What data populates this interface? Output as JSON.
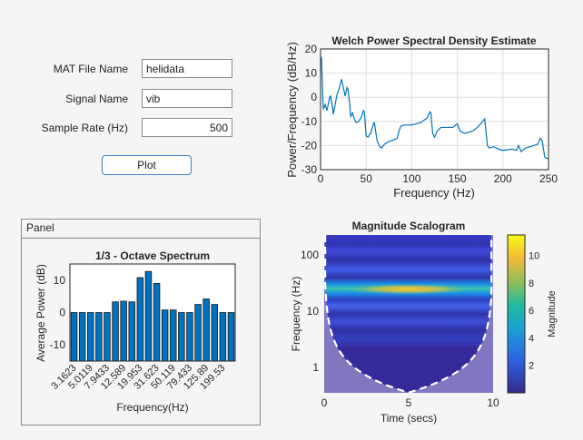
{
  "form": {
    "mat_file_label": "MAT File Name",
    "mat_file_value": "helidata",
    "signal_label": "Signal Name",
    "signal_value": "vib",
    "rate_label": "Sample Rate (Hz)",
    "rate_value": "500",
    "plot_button": "Plot"
  },
  "panel": {
    "title": "Panel"
  },
  "colors": {
    "bar": "#0072BD",
    "line": "#0072BD",
    "background": "#f5f5f5"
  },
  "chart_data": [
    {
      "type": "line",
      "title": "Welch Power Spectral Density Estimate",
      "xlabel": "Frequency (Hz)",
      "ylabel": "Power/Frequency (dB/Hz)",
      "xlim": [
        0,
        250
      ],
      "ylim": [
        -30,
        20
      ],
      "grid": true,
      "xticks": [
        "0",
        "50",
        "100",
        "150",
        "200",
        "250"
      ],
      "yticks": [
        "-30",
        "-20",
        "-10",
        "0",
        "10",
        "20"
      ],
      "x": [
        0,
        1,
        2,
        3,
        5,
        7,
        10,
        11,
        13,
        14,
        16,
        18,
        20,
        23,
        25,
        27,
        29,
        30,
        32,
        33,
        35,
        37,
        39,
        42,
        45,
        47,
        48,
        50,
        52,
        55,
        58,
        59,
        62,
        65,
        67,
        70,
        74,
        78,
        84,
        86,
        88,
        92,
        100,
        110,
        117,
        120,
        121,
        123,
        125,
        128,
        132,
        140,
        145,
        150,
        153,
        158,
        162,
        167,
        172,
        178,
        180,
        183,
        185,
        190,
        195,
        200,
        210,
        215,
        217,
        220,
        225,
        230,
        238,
        241,
        243,
        246,
        250
      ],
      "y": [
        17,
        16,
        5,
        -5,
        -3,
        -5.5,
        0,
        0.5,
        -4,
        -7,
        -3,
        1,
        3,
        7.5,
        4,
        0.5,
        4,
        3.5,
        -3,
        -8,
        -6.5,
        -9,
        -10.5,
        -10,
        -8,
        -5.5,
        -6,
        -16,
        -16.5,
        -15,
        -11,
        -10.5,
        -18,
        -20.5,
        -21,
        -19.5,
        -18.5,
        -18,
        -17,
        -14,
        -12,
        -11.5,
        -11.5,
        -10.5,
        -8.5,
        -6,
        -6.5,
        -15,
        -16.5,
        -14,
        -12.5,
        -12.5,
        -12.5,
        -11,
        -14,
        -15,
        -14.5,
        -14,
        -12.5,
        -10,
        -9,
        -20,
        -21,
        -20.5,
        -21.5,
        -22,
        -21.5,
        -22,
        -20,
        -22.5,
        -21,
        -20.5,
        -19.5,
        -17,
        -18,
        -25,
        -25.5
      ]
    },
    {
      "type": "bar",
      "title": "1/3 - Octave Spectrum",
      "xlabel": "Frequency(Hz)",
      "ylabel": "Average Power (dB)",
      "ylim": [
        -15,
        15
      ],
      "yticks": [
        "-10",
        "0",
        "10"
      ],
      "xtick_labels": [
        "3.1623",
        "5.0119",
        "7.9433",
        "12.589",
        "19.953",
        "31.623",
        "50.119",
        "79.433",
        "125.89",
        "199.53"
      ],
      "values": [
        -12.5,
        -8.5,
        -1,
        -0.7,
        -4.7,
        3.3,
        3.5,
        3.3,
        10.8,
        12.7,
        9,
        0.8,
        0.8,
        -3.5,
        -2.7,
        2.5,
        4.2,
        2.5,
        -1,
        -6
      ]
    },
    {
      "type": "heatmap",
      "title": "Magnitude Scalogram",
      "xlabel": "Time (secs)",
      "ylabel": "Frequency (Hz)",
      "xlim": [
        0,
        10
      ],
      "ylim": [
        0.35,
        226
      ],
      "yscale": "log",
      "xticks": [
        "0",
        "5",
        "10"
      ],
      "yticks": [
        "1",
        "10",
        "100"
      ],
      "colorbar": {
        "label": "Magnitude",
        "ticks": [
          "2",
          "4",
          "6",
          "8",
          "10"
        ],
        "range": [
          0,
          11.5
        ]
      },
      "peak_band_hz": [
        20,
        30
      ],
      "peak_magnitude": 11
    }
  ]
}
